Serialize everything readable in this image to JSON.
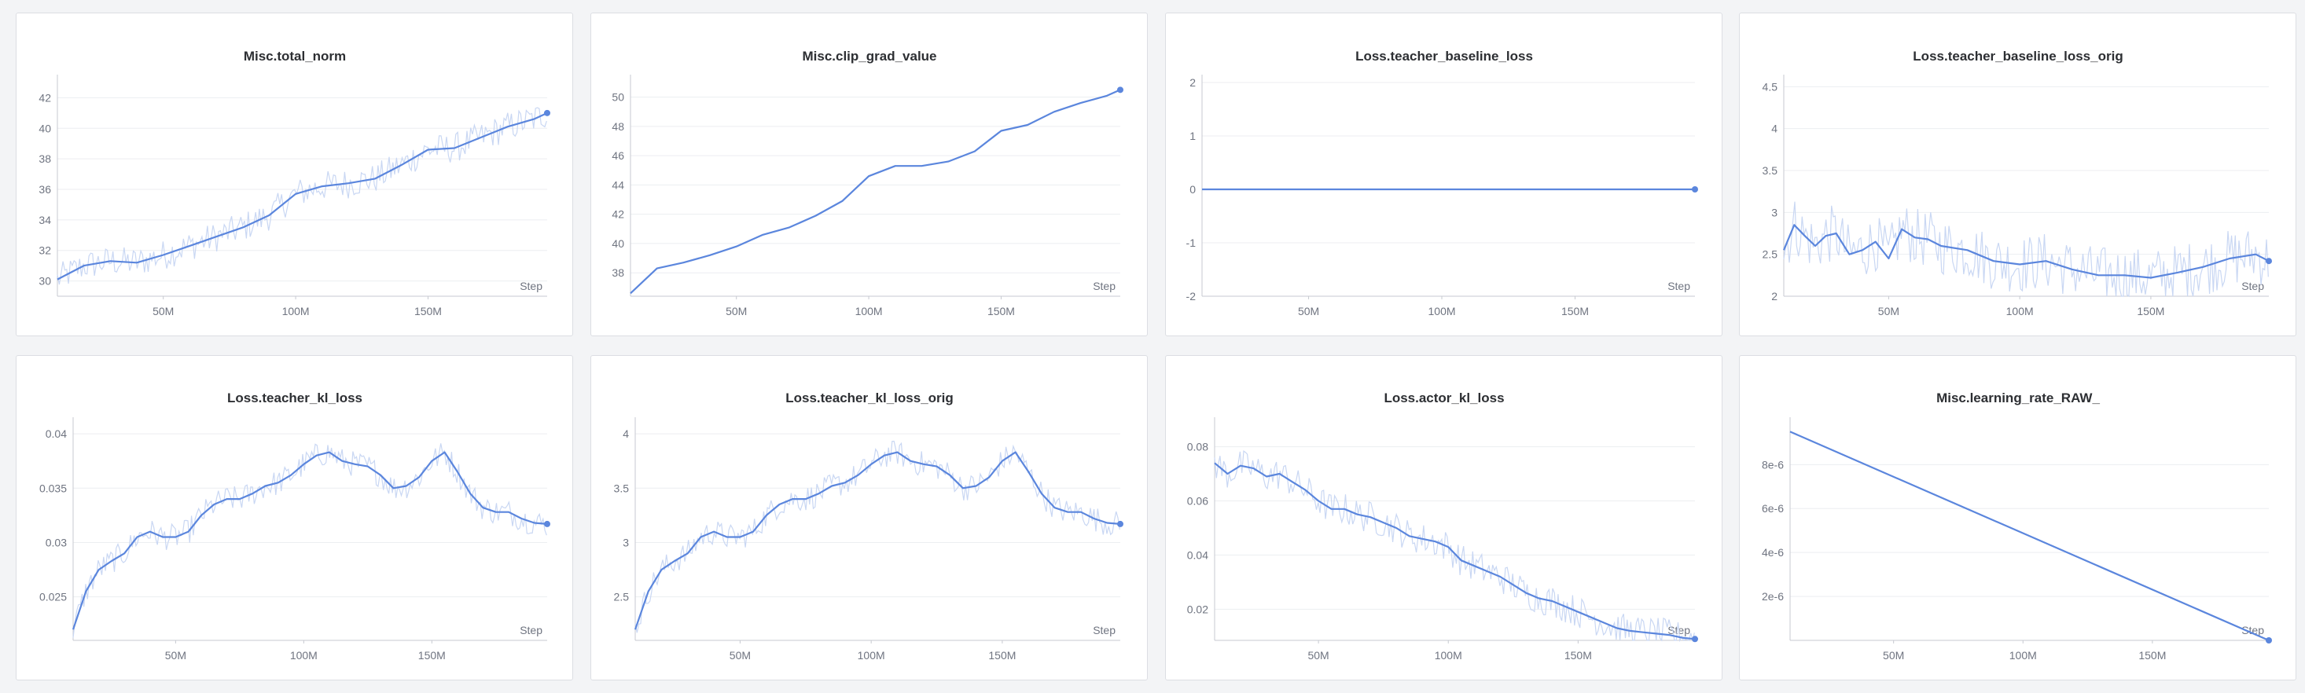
{
  "colors": {
    "line": "#5b86dd",
    "raw": "#c9d7f3",
    "axis": "#c7cad1",
    "grid": "#eceef1"
  },
  "chart_data": [
    {
      "type": "line",
      "title": "Misc.total_norm",
      "xlabel": "Step",
      "x_ticks": [
        "50M",
        "100M",
        "150M"
      ],
      "xlim": [
        10,
        195
      ],
      "ylim": [
        29,
        43
      ],
      "y_ticks": [
        30,
        32,
        34,
        36,
        38,
        40,
        42
      ],
      "y_tick_labels": [
        "30",
        "32",
        "34",
        "36",
        "38",
        "40",
        "42"
      ],
      "raw": true,
      "noise": 1.0,
      "series": [
        {
          "x": [
            10,
            20,
            30,
            40,
            50,
            60,
            70,
            80,
            90,
            100,
            110,
            120,
            130,
            140,
            150,
            160,
            170,
            180,
            190,
            195
          ],
          "y": [
            30.1,
            31.0,
            31.3,
            31.2,
            31.7,
            32.3,
            32.9,
            33.5,
            34.3,
            35.7,
            36.2,
            36.4,
            36.7,
            37.6,
            38.6,
            38.7,
            39.4,
            40.1,
            40.6,
            41.0
          ]
        }
      ]
    },
    {
      "type": "line",
      "title": "Misc.clip_grad_value",
      "xlabel": "Step",
      "x_ticks": [
        "50M",
        "100M",
        "150M"
      ],
      "xlim": [
        10,
        195
      ],
      "ylim": [
        36.4,
        51
      ],
      "y_ticks": [
        38,
        40,
        42,
        44,
        46,
        48,
        50
      ],
      "y_tick_labels": [
        "38",
        "40",
        "42",
        "44",
        "46",
        "48",
        "50"
      ],
      "raw": false,
      "noise": 0,
      "series": [
        {
          "x": [
            10,
            20,
            30,
            40,
            50,
            60,
            70,
            80,
            90,
            100,
            110,
            120,
            130,
            140,
            150,
            160,
            170,
            180,
            190,
            195
          ],
          "y": [
            36.6,
            38.3,
            38.7,
            39.2,
            39.8,
            40.6,
            41.1,
            41.9,
            42.9,
            44.6,
            45.3,
            45.3,
            45.6,
            46.3,
            47.7,
            48.1,
            49.0,
            49.6,
            50.1,
            50.5
          ]
        }
      ]
    },
    {
      "type": "line",
      "title": "Loss.teacher_baseline_loss",
      "xlabel": "Step",
      "x_ticks": [
        "50M",
        "100M",
        "150M"
      ],
      "xlim": [
        10,
        195
      ],
      "ylim": [
        -2,
        2
      ],
      "y_ticks": [
        -2,
        -1,
        0,
        1,
        2
      ],
      "y_tick_labels": [
        "-2",
        "-1",
        "0",
        "1",
        "2"
      ],
      "raw": false,
      "noise": 0,
      "series": [
        {
          "x": [
            10,
            195
          ],
          "y": [
            0,
            0
          ]
        }
      ]
    },
    {
      "type": "line",
      "title": "Loss.teacher_baseline_loss_orig",
      "xlabel": "Step",
      "x_ticks": [
        "50M",
        "100M",
        "150M"
      ],
      "xlim": [
        10,
        195
      ],
      "ylim": [
        2,
        4.55
      ],
      "y_ticks": [
        2,
        2.5,
        3,
        3.5,
        4,
        4.5
      ],
      "y_tick_labels": [
        "2",
        "2.5",
        "3",
        "3.5",
        "4",
        "4.5"
      ],
      "raw": true,
      "noise": 0.35,
      "series": [
        {
          "x": [
            10,
            14,
            18,
            22,
            26,
            30,
            35,
            40,
            45,
            50,
            55,
            60,
            65,
            70,
            80,
            90,
            100,
            110,
            120,
            130,
            140,
            150,
            160,
            170,
            180,
            190,
            195
          ],
          "y": [
            2.55,
            2.85,
            2.72,
            2.6,
            2.72,
            2.75,
            2.5,
            2.55,
            2.65,
            2.45,
            2.8,
            2.7,
            2.68,
            2.6,
            2.55,
            2.42,
            2.38,
            2.42,
            2.32,
            2.25,
            2.25,
            2.22,
            2.28,
            2.35,
            2.45,
            2.5,
            2.42
          ]
        }
      ]
    },
    {
      "type": "line",
      "title": "Loss.teacher_kl_loss",
      "xlabel": "Step",
      "x_ticks": [
        "50M",
        "100M",
        "150M"
      ],
      "xlim": [
        10,
        195
      ],
      "ylim": [
        0.021,
        0.0408
      ],
      "y_ticks": [
        0.025,
        0.03,
        0.035,
        0.04
      ],
      "y_tick_labels": [
        "0.025",
        "0.03",
        "0.035",
        "0.04"
      ],
      "raw": true,
      "noise": 0.0012,
      "series": [
        {
          "x": [
            10,
            15,
            20,
            25,
            30,
            35,
            40,
            45,
            50,
            55,
            60,
            65,
            70,
            75,
            80,
            85,
            90,
            95,
            100,
            105,
            110,
            115,
            120,
            125,
            130,
            135,
            140,
            145,
            150,
            155,
            160,
            165,
            170,
            175,
            180,
            185,
            190,
            195
          ],
          "y": [
            0.022,
            0.0255,
            0.0275,
            0.0283,
            0.029,
            0.0305,
            0.031,
            0.0305,
            0.0305,
            0.031,
            0.0325,
            0.0335,
            0.034,
            0.034,
            0.0345,
            0.0352,
            0.0355,
            0.0362,
            0.0372,
            0.038,
            0.0383,
            0.0375,
            0.0372,
            0.037,
            0.0362,
            0.035,
            0.0352,
            0.036,
            0.0375,
            0.0383,
            0.0365,
            0.0345,
            0.0332,
            0.0328,
            0.0328,
            0.0322,
            0.0318,
            0.0317
          ]
        }
      ]
    },
    {
      "type": "line",
      "title": "Loss.teacher_kl_loss_orig",
      "xlabel": "Step",
      "x_ticks": [
        "50M",
        "100M",
        "150M"
      ],
      "xlim": [
        10,
        195
      ],
      "ylim": [
        2.1,
        4.08
      ],
      "y_ticks": [
        2.5,
        3,
        3.5,
        4
      ],
      "y_tick_labels": [
        "2.5",
        "3",
        "3.5",
        "4"
      ],
      "raw": true,
      "noise": 0.12,
      "series": [
        {
          "x": [
            10,
            15,
            20,
            25,
            30,
            35,
            40,
            45,
            50,
            55,
            60,
            65,
            70,
            75,
            80,
            85,
            90,
            95,
            100,
            105,
            110,
            115,
            120,
            125,
            130,
            135,
            140,
            145,
            150,
            155,
            160,
            165,
            170,
            175,
            180,
            185,
            190,
            195
          ],
          "y": [
            2.2,
            2.55,
            2.75,
            2.83,
            2.9,
            3.05,
            3.1,
            3.05,
            3.05,
            3.1,
            3.25,
            3.35,
            3.4,
            3.4,
            3.45,
            3.52,
            3.55,
            3.62,
            3.72,
            3.8,
            3.83,
            3.75,
            3.72,
            3.7,
            3.62,
            3.5,
            3.52,
            3.6,
            3.75,
            3.83,
            3.65,
            3.45,
            3.32,
            3.28,
            3.28,
            3.22,
            3.18,
            3.17
          ]
        }
      ]
    },
    {
      "type": "line",
      "title": "Loss.actor_kl_loss",
      "xlabel": "Step",
      "x_ticks": [
        "50M",
        "100M",
        "150M"
      ],
      "xlim": [
        10,
        195
      ],
      "ylim": [
        0.0085,
        0.088
      ],
      "y_ticks": [
        0.02,
        0.04,
        0.06,
        0.08
      ],
      "y_tick_labels": [
        "0.02",
        "0.04",
        "0.06",
        "0.08"
      ],
      "raw": true,
      "noise": 0.006,
      "series": [
        {
          "x": [
            10,
            15,
            20,
            25,
            30,
            35,
            40,
            45,
            50,
            55,
            60,
            65,
            70,
            75,
            80,
            85,
            90,
            95,
            100,
            105,
            110,
            115,
            120,
            125,
            130,
            135,
            140,
            145,
            150,
            155,
            160,
            165,
            170,
            175,
            180,
            185,
            190,
            195
          ],
          "y": [
            0.074,
            0.07,
            0.073,
            0.072,
            0.069,
            0.07,
            0.067,
            0.064,
            0.06,
            0.057,
            0.057,
            0.055,
            0.054,
            0.052,
            0.05,
            0.047,
            0.046,
            0.045,
            0.043,
            0.038,
            0.036,
            0.034,
            0.032,
            0.029,
            0.026,
            0.024,
            0.023,
            0.021,
            0.019,
            0.017,
            0.015,
            0.013,
            0.012,
            0.0115,
            0.011,
            0.0105,
            0.0095,
            0.009
          ]
        }
      ]
    },
    {
      "type": "line",
      "title": "Misc.learning_rate_RAW_",
      "xlabel": "Step",
      "x_ticks": [
        "50M",
        "100M",
        "150M"
      ],
      "xlim": [
        10,
        195
      ],
      "ylim": [
        0,
        9.8e-06
      ],
      "y_ticks": [
        2e-06,
        4e-06,
        6e-06,
        8e-06
      ],
      "y_tick_labels": [
        "2e-6",
        "4e-6",
        "6e-6",
        "8e-6"
      ],
      "raw": false,
      "noise": 0,
      "series": [
        {
          "x": [
            10,
            195
          ],
          "y": [
            9.5e-06,
            0
          ]
        }
      ]
    }
  ]
}
